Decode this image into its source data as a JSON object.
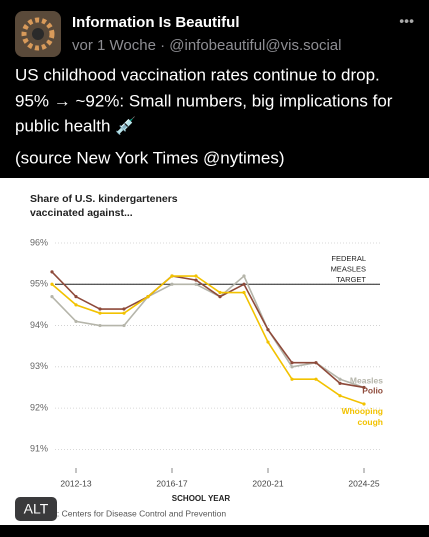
{
  "post": {
    "author": "Information Is Beautiful",
    "meta": "vor 1 Woche · @infobeautiful@vis.social",
    "menu": "•••",
    "text_lines": [
      "US childhood vaccination rates continue to drop.",
      "95% → ~92%: Small numbers, big implications for",
      "public health 💉"
    ],
    "source_line": "(source New York Times @nytimes)",
    "alt_badge": "ALT"
  },
  "chart_data": {
    "type": "line",
    "title_lines": [
      "Share of U.S. kindergarteners",
      "vaccinated against..."
    ],
    "categories": [
      null,
      "2012-13",
      null,
      null,
      null,
      "2016-17",
      null,
      null,
      null,
      "2020-21",
      null,
      null,
      null,
      "2024-25"
    ],
    "x_label": "SCHOOL YEAR",
    "series": [
      {
        "name": "Measles",
        "color": "#b5b5aa",
        "values": [
          94.7,
          94.1,
          94.0,
          94.0,
          94.7,
          95.0,
          95.0,
          94.7,
          95.2,
          93.9,
          93.0,
          93.1,
          92.7,
          92.5
        ]
      },
      {
        "name": "Polio",
        "color": "#8e4a3a",
        "values": [
          95.3,
          94.7,
          94.4,
          94.4,
          94.7,
          95.2,
          95.1,
          94.7,
          95.0,
          93.9,
          93.1,
          93.1,
          92.6,
          92.5
        ]
      },
      {
        "name": "Whooping cough",
        "color": "#f2c200",
        "values": [
          95.0,
          94.5,
          94.3,
          94.3,
          94.7,
          95.2,
          95.2,
          94.8,
          94.8,
          93.6,
          92.7,
          92.7,
          92.3,
          92.1
        ]
      }
    ],
    "ylim": [
      90.5,
      96
    ],
    "yticks": [
      {
        "value": 91,
        "label": "91%"
      },
      {
        "value": 92,
        "label": "92%"
      },
      {
        "value": 93,
        "label": "93%"
      },
      {
        "value": 94,
        "label": "94%"
      },
      {
        "value": 95,
        "label": "95%"
      },
      {
        "value": 96,
        "label": "96%"
      }
    ],
    "grid": true,
    "target": 95,
    "target_label": [
      "FEDERAL",
      "MEASLES",
      "TARGET"
    ],
    "source": "Source: Centers for Disease Control and Prevention"
  }
}
